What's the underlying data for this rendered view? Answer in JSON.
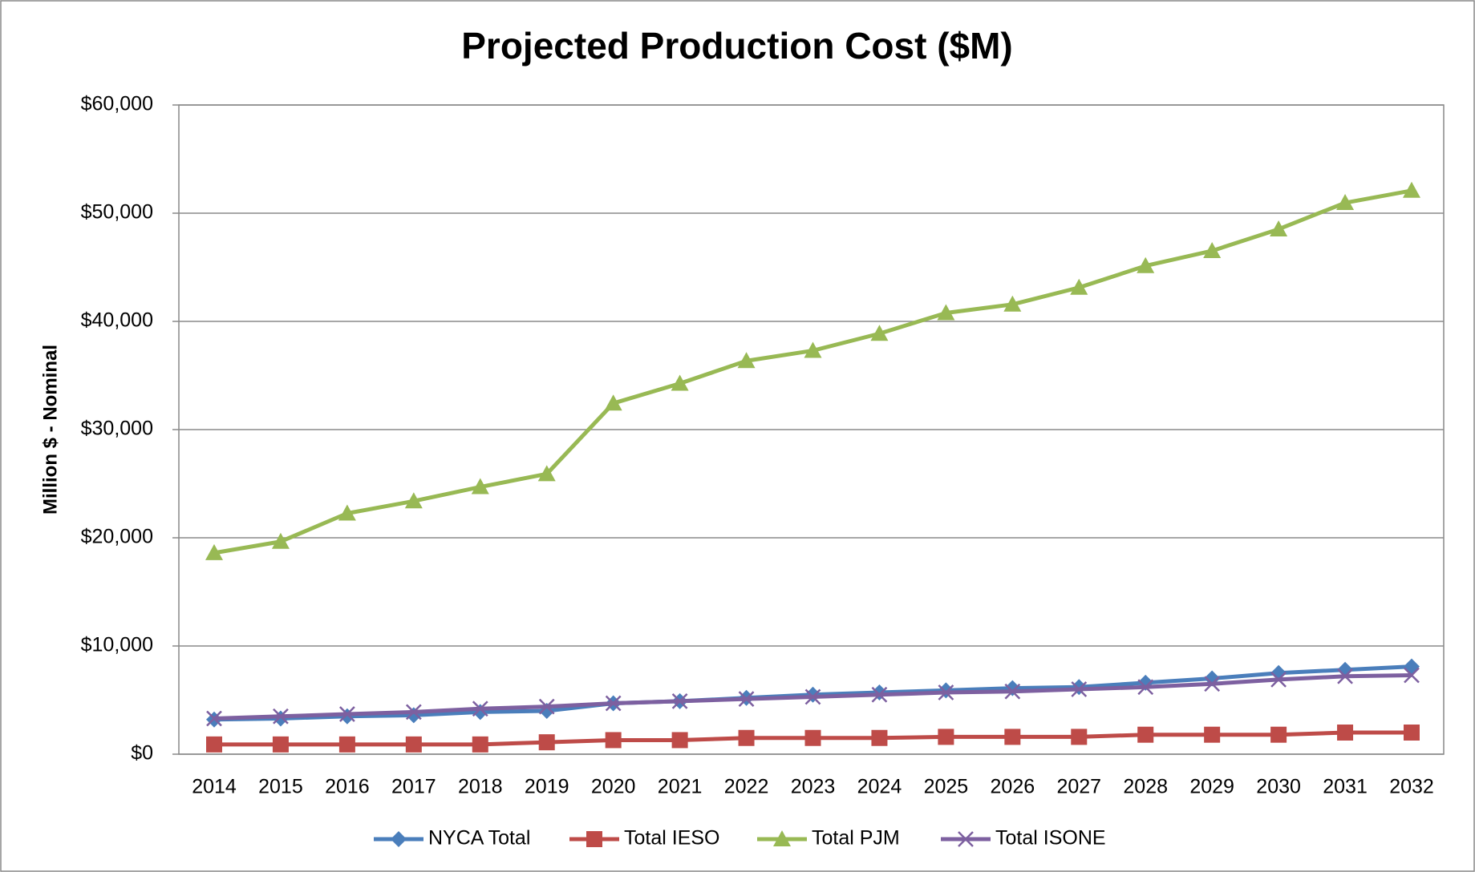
{
  "chart_data": {
    "type": "line",
    "title": "Projected Production Cost ($M)",
    "y_label": "Million $ - Nominal",
    "categories": [
      "2014",
      "2015",
      "2016",
      "2017",
      "2018",
      "2019",
      "2020",
      "2021",
      "2022",
      "2023",
      "2024",
      "2025",
      "2026",
      "2027",
      "2028",
      "2029",
      "2030",
      "2031",
      "2032"
    ],
    "series": [
      {
        "name": "NYCA Total",
        "color": "#4a7ebb",
        "marker": "diamond",
        "values": [
          3200,
          3300,
          3500,
          3600,
          3900,
          4000,
          4700,
          4900,
          5200,
          5500,
          5700,
          5900,
          6100,
          6200,
          6600,
          7000,
          7500,
          7800,
          8100
        ]
      },
      {
        "name": "Total IESO",
        "color": "#be4b48",
        "marker": "square",
        "values": [
          900,
          900,
          900,
          900,
          900,
          1100,
          1300,
          1300,
          1500,
          1500,
          1500,
          1600,
          1600,
          1600,
          1800,
          1800,
          1800,
          2000,
          2000
        ]
      },
      {
        "name": "Total PJM",
        "color": "#98b954",
        "marker": "triangle",
        "values": [
          18600,
          19650,
          22260,
          23390,
          24700,
          25900,
          32430,
          34260,
          36350,
          37300,
          38870,
          40780,
          41570,
          43130,
          45130,
          46520,
          48520,
          50960,
          52090
        ]
      },
      {
        "name": "Total ISONE",
        "color": "#7d60a0",
        "marker": "x",
        "values": [
          3300,
          3500,
          3700,
          3900,
          4200,
          4400,
          4700,
          4900,
          5100,
          5300,
          5500,
          5700,
          5800,
          6000,
          6200,
          6500,
          6900,
          7200,
          7300
        ]
      }
    ],
    "ylim": [
      0,
      60000
    ],
    "yticks": [
      {
        "value": 0,
        "label": "$0"
      },
      {
        "value": 10000,
        "label": "$10,000"
      },
      {
        "value": 20000,
        "label": "$20,000"
      },
      {
        "value": 30000,
        "label": "$30,000"
      },
      {
        "value": 40000,
        "label": "$40,000"
      },
      {
        "value": 50000,
        "label": "$50,000"
      },
      {
        "value": 60000,
        "label": "$60,000"
      }
    ],
    "grid": true,
    "legend": "bottom"
  }
}
